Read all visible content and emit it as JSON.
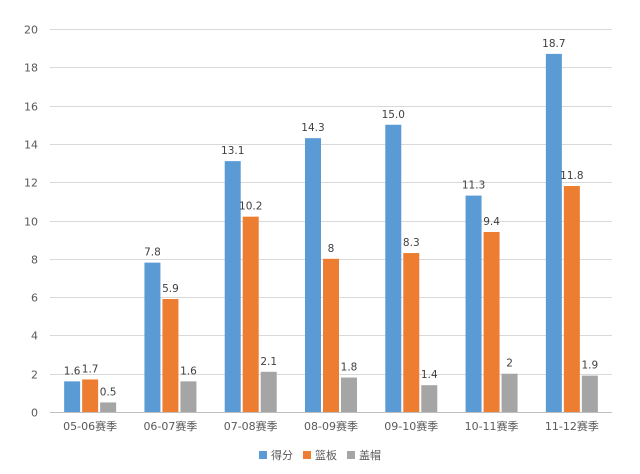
{
  "chart_data": {
    "type": "bar",
    "categories": [
      "05-06赛季",
      "06-07赛季",
      "07-08赛季",
      "08-09赛季",
      "09-10赛季",
      "10-11赛季",
      "11-12赛季"
    ],
    "series": [
      {
        "name": "得分",
        "values": [
          1.6,
          7.8,
          13.1,
          14.3,
          15.0,
          11.3,
          18.7
        ],
        "labels": [
          "1.6",
          "7.8",
          "13.1",
          "14.3",
          "15.0",
          "11.3",
          "18.7"
        ],
        "color": "#5B9BD5"
      },
      {
        "name": "篮板",
        "values": [
          1.7,
          5.9,
          10.2,
          8,
          8.3,
          9.4,
          11.8
        ],
        "labels": [
          "1.7",
          "5.9",
          "10.2",
          "8",
          "8.3",
          "9.4",
          "11.8"
        ],
        "color": "#ED7D31"
      },
      {
        "name": "盖帽",
        "values": [
          0.5,
          1.6,
          2.1,
          1.8,
          1.4,
          2,
          1.9
        ],
        "labels": [
          "0.5",
          "1.6",
          "2.1",
          "1.8",
          "1.4",
          "2",
          "1.9"
        ],
        "color": "#A5A5A5"
      }
    ],
    "ylim": [
      0,
      20
    ],
    "yticks": [
      0,
      2,
      4,
      6,
      8,
      10,
      12,
      14,
      16,
      18,
      20
    ],
    "grid": true,
    "legend_position": "bottom",
    "title": "",
    "xlabel": "",
    "ylabel": ""
  }
}
